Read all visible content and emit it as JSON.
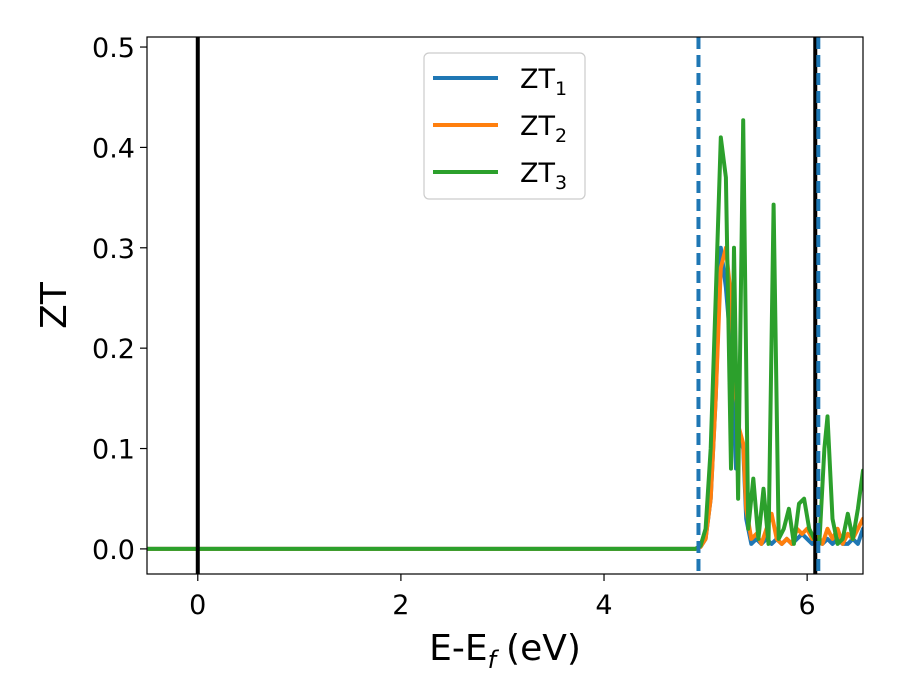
{
  "chart_data": {
    "type": "line",
    "title": "",
    "xlabel": "E-E",
    "xlabel_sub": "f",
    "xlabel_unit": "(eV)",
    "ylabel": "ZT",
    "xlim": [
      -0.5,
      6.55
    ],
    "ylim": [
      -0.025,
      0.51
    ],
    "xticks": [
      0,
      2,
      4,
      6
    ],
    "xtick_labels": [
      "0",
      "2",
      "4",
      "6"
    ],
    "yticks": [
      0.0,
      0.1,
      0.2,
      0.3,
      0.4,
      0.5
    ],
    "ytick_labels": [
      "0.0",
      "0.1",
      "0.2",
      "0.3",
      "0.4",
      "0.5"
    ],
    "grid": false,
    "legend_position": "top-center",
    "vlines": [
      {
        "x": 0.0,
        "style": "solid",
        "color": "#000000"
      },
      {
        "x": 6.08,
        "style": "solid",
        "color": "#000000"
      },
      {
        "x": 4.93,
        "style": "dashed",
        "color": "#1f77b4"
      },
      {
        "x": 6.11,
        "style": "dashed",
        "color": "#1f77b4"
      }
    ],
    "series": [
      {
        "name": "ZT",
        "name_sub": "1",
        "color": "#1f77b4",
        "x": [
          -0.5,
          4.9,
          4.95,
          5.0,
          5.05,
          5.1,
          5.15,
          5.2,
          5.25,
          5.3,
          5.33,
          5.37,
          5.4,
          5.45,
          5.5,
          5.55,
          5.6,
          5.65,
          5.7,
          5.75,
          5.8,
          5.85,
          5.9,
          5.95,
          6.0,
          6.05,
          6.1,
          6.15,
          6.2,
          6.25,
          6.3,
          6.35,
          6.4,
          6.45,
          6.5,
          6.55
        ],
        "y": [
          0.0,
          0.0,
          0.002,
          0.01,
          0.05,
          0.15,
          0.3,
          0.26,
          0.2,
          0.08,
          0.11,
          0.1,
          0.03,
          0.005,
          0.01,
          0.005,
          0.01,
          0.005,
          0.01,
          0.005,
          0.01,
          0.005,
          0.01,
          0.015,
          0.01,
          0.005,
          0.01,
          0.005,
          0.01,
          0.005,
          0.01,
          0.005,
          0.005,
          0.01,
          0.005,
          0.02
        ]
      },
      {
        "name": "ZT",
        "name_sub": "2",
        "color": "#ff7f0e",
        "x": [
          -0.5,
          4.9,
          4.95,
          5.0,
          5.05,
          5.1,
          5.15,
          5.2,
          5.25,
          5.3,
          5.33,
          5.37,
          5.4,
          5.45,
          5.5,
          5.55,
          5.6,
          5.65,
          5.7,
          5.75,
          5.8,
          5.85,
          5.9,
          5.95,
          6.0,
          6.05,
          6.1,
          6.15,
          6.2,
          6.25,
          6.3,
          6.35,
          6.4,
          6.45,
          6.5,
          6.55
        ],
        "y": [
          0.0,
          0.0,
          0.002,
          0.01,
          0.05,
          0.15,
          0.28,
          0.3,
          0.25,
          0.15,
          0.12,
          0.105,
          0.04,
          0.01,
          0.015,
          0.005,
          0.02,
          0.035,
          0.01,
          0.005,
          0.01,
          0.005,
          0.02,
          0.015,
          0.02,
          0.01,
          0.015,
          0.005,
          0.02,
          0.01,
          0.02,
          0.005,
          0.015,
          0.01,
          0.02,
          0.03
        ]
      },
      {
        "name": "ZT",
        "name_sub": "3",
        "color": "#2ca02c",
        "x": [
          -0.5,
          4.9,
          4.95,
          5.0,
          5.05,
          5.1,
          5.15,
          5.2,
          5.25,
          5.28,
          5.32,
          5.37,
          5.42,
          5.47,
          5.52,
          5.57,
          5.62,
          5.67,
          5.72,
          5.77,
          5.82,
          5.87,
          5.92,
          5.97,
          6.02,
          6.07,
          6.12,
          6.17,
          6.2,
          6.25,
          6.3,
          6.35,
          6.4,
          6.45,
          6.5,
          6.55
        ],
        "y": [
          0.0,
          0.0,
          0.003,
          0.02,
          0.1,
          0.25,
          0.41,
          0.37,
          0.08,
          0.3,
          0.05,
          0.427,
          0.02,
          0.07,
          0.01,
          0.06,
          0.005,
          0.343,
          0.01,
          0.02,
          0.04,
          0.005,
          0.045,
          0.05,
          0.02,
          0.01,
          0.005,
          0.1,
          0.132,
          0.03,
          0.005,
          0.01,
          0.035,
          0.01,
          0.04,
          0.078
        ]
      }
    ]
  }
}
